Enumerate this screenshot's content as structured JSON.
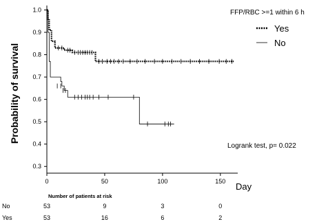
{
  "chart_data": {
    "type": "line",
    "subtype": "kaplan-meier",
    "ylabel": "Probability of survival",
    "xlabel": "Day",
    "xlim": [
      0,
      165
    ],
    "ylim": [
      0.27,
      1.02
    ],
    "xticks": [
      0,
      50,
      100,
      150
    ],
    "yticks": [
      0.3,
      0.4,
      0.5,
      0.6,
      0.7,
      0.8,
      0.9,
      1.0
    ],
    "xtick_labels": [
      "0",
      "50",
      "100",
      "150"
    ],
    "ytick_labels": [
      "0.3",
      "0.4",
      "0.5",
      "0.6",
      "0.7",
      "0.8",
      "0.9",
      "1.0"
    ],
    "legend": {
      "title": "FFP/RBC >=1 within 6 h",
      "placement": "top-right"
    },
    "series": [
      {
        "name": "Yes",
        "style": "dotted",
        "steps": [
          [
            0,
            1.0
          ],
          [
            1,
            0.96
          ],
          [
            2,
            0.91
          ],
          [
            4,
            0.86
          ],
          [
            7,
            0.83
          ],
          [
            15,
            0.82
          ],
          [
            22,
            0.81
          ],
          [
            42,
            0.77
          ],
          [
            162,
            0.77
          ]
        ],
        "censored": [
          [
            10,
            0.83
          ],
          [
            13,
            0.83
          ],
          [
            18,
            0.82
          ],
          [
            20,
            0.82
          ],
          [
            24,
            0.81
          ],
          [
            27,
            0.81
          ],
          [
            29,
            0.81
          ],
          [
            31,
            0.81
          ],
          [
            33,
            0.81
          ],
          [
            35,
            0.81
          ],
          [
            37,
            0.81
          ],
          [
            39,
            0.81
          ],
          [
            45,
            0.77
          ],
          [
            48,
            0.77
          ],
          [
            52,
            0.77
          ],
          [
            55,
            0.77
          ],
          [
            58,
            0.77
          ],
          [
            62,
            0.77
          ],
          [
            66,
            0.77
          ],
          [
            72,
            0.77
          ],
          [
            78,
            0.77
          ],
          [
            85,
            0.77
          ],
          [
            93,
            0.77
          ],
          [
            100,
            0.77
          ],
          [
            108,
            0.77
          ],
          [
            116,
            0.77
          ],
          [
            124,
            0.77
          ],
          [
            132,
            0.77
          ],
          [
            140,
            0.77
          ],
          [
            149,
            0.77
          ],
          [
            155,
            0.77
          ],
          [
            160,
            0.77
          ]
        ]
      },
      {
        "name": "No",
        "style": "solid",
        "steps": [
          [
            0,
            1.0
          ],
          [
            1,
            0.9
          ],
          [
            2,
            0.77
          ],
          [
            3,
            0.7
          ],
          [
            12,
            0.68
          ],
          [
            13,
            0.66
          ],
          [
            15,
            0.64
          ],
          [
            18,
            0.61
          ],
          [
            80,
            0.49
          ],
          [
            110,
            0.49
          ]
        ],
        "censored": [
          [
            9,
            0.66
          ],
          [
            12,
            0.66
          ],
          [
            14,
            0.64
          ],
          [
            16,
            0.64
          ],
          [
            24,
            0.61
          ],
          [
            27,
            0.61
          ],
          [
            30,
            0.61
          ],
          [
            33,
            0.61
          ],
          [
            35,
            0.61
          ],
          [
            37,
            0.61
          ],
          [
            40,
            0.61
          ],
          [
            45,
            0.61
          ],
          [
            53,
            0.61
          ],
          [
            75,
            0.61
          ],
          [
            87,
            0.49
          ],
          [
            102,
            0.49
          ],
          [
            105,
            0.49
          ],
          [
            107,
            0.49
          ]
        ]
      }
    ],
    "annotation": "Logrank test, p= 0.022",
    "risk_table": {
      "title": "Number of patients at risk",
      "times": [
        0,
        50,
        100,
        150
      ],
      "rows": [
        {
          "label": "No",
          "counts": [
            "53",
            "9",
            "3",
            "0"
          ]
        },
        {
          "label": "Yes",
          "counts": [
            "53",
            "16",
            "6",
            "2"
          ]
        }
      ]
    }
  }
}
